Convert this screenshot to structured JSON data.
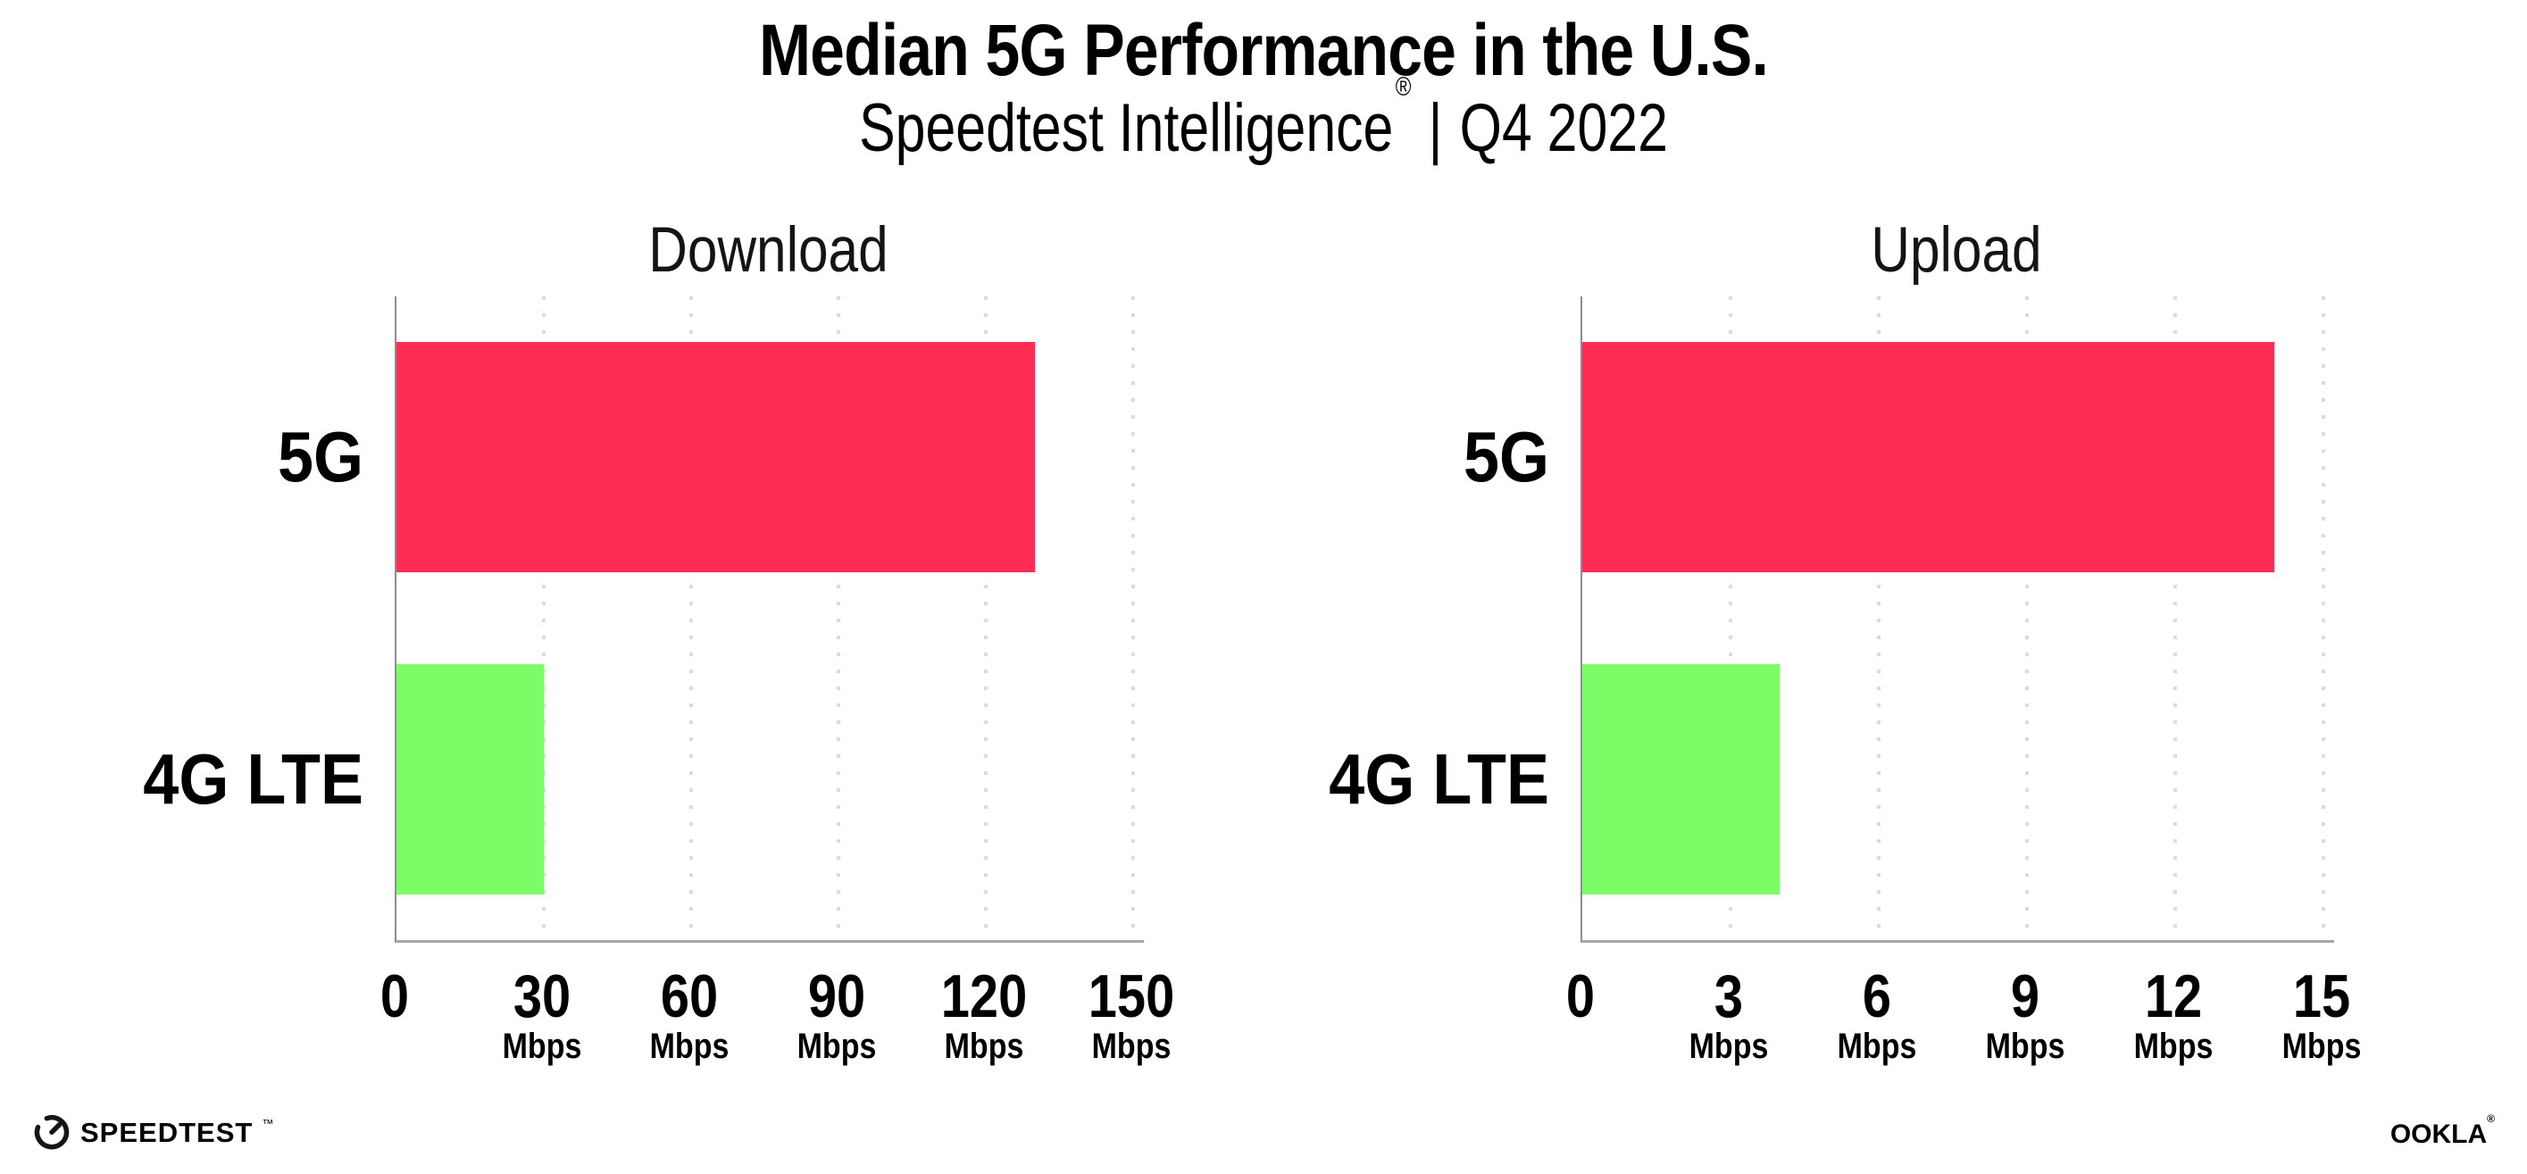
{
  "header": {
    "title": "Median 5G Performance in the U.S.",
    "subtitle": {
      "brand": "Speedtest Intelligence",
      "registered_mark": "®",
      "separator": "|",
      "period": "Q4 2022"
    }
  },
  "chart_data": [
    {
      "type": "bar",
      "orientation": "horizontal",
      "title": "Download",
      "categories": [
        "5G",
        "4G LTE"
      ],
      "values": [
        130,
        30
      ],
      "unit": "Mbps",
      "xlim": [
        0,
        150
      ],
      "ticks": [
        0,
        30,
        60,
        90,
        120,
        150
      ],
      "bar_colors": [
        "#FF2D55",
        "#7CFC67"
      ],
      "grid": "dotted-vertical",
      "legend": "none"
    },
    {
      "type": "bar",
      "orientation": "horizontal",
      "title": "Upload",
      "categories": [
        "5G",
        "4G LTE"
      ],
      "values": [
        14,
        4
      ],
      "unit": "Mbps",
      "xlim": [
        0,
        15
      ],
      "ticks": [
        0,
        3,
        6,
        9,
        12,
        15
      ],
      "bar_colors": [
        "#FF2D55",
        "#7CFC67"
      ],
      "grid": "dotted-vertical",
      "legend": "none"
    }
  ],
  "footer": {
    "speedtest_logo_text": "SPEEDTEST",
    "speedtest_trademark": "™",
    "speedtest_icon": "gauge-icon",
    "ookla_logo_text": "OOKLA",
    "ookla_registered": "®"
  },
  "colors": {
    "bar_5g": "#FF2D55",
    "bar_4g_lte": "#7CFC67",
    "axis": "#a8a8a8",
    "gridline": "#d9dbe4",
    "text": "#000000",
    "background": "#ffffff"
  }
}
